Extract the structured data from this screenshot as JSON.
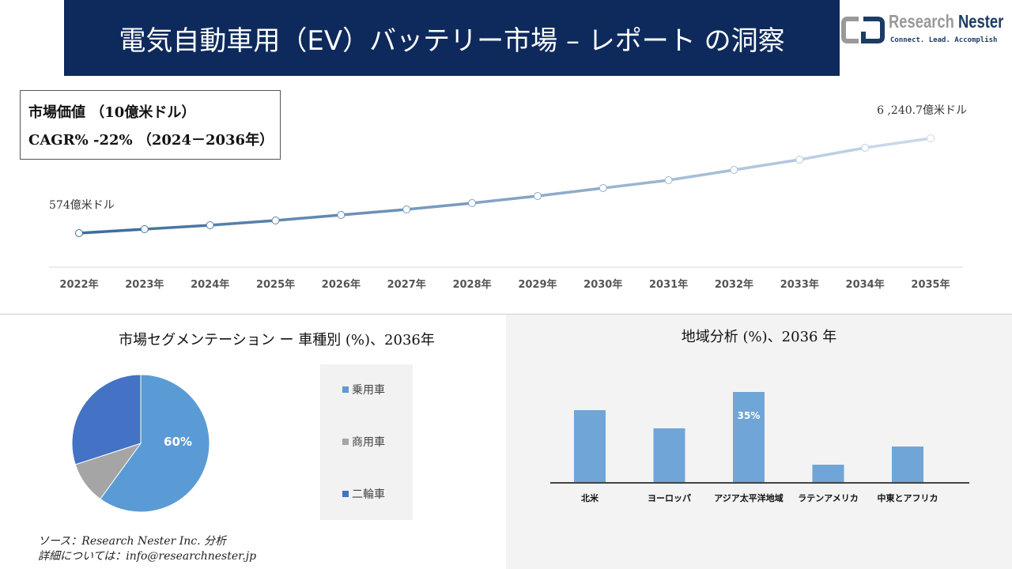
{
  "header": {
    "title": "電気自動車用（EV）バッテリー市場 – レポート の洞察",
    "logo_name_1": "Research",
    "logo_name_2": "Nester",
    "logo_tagline": "Connect. Lead. Accomplish"
  },
  "metric_box": {
    "line1": "市場価値 （10億米ドル）",
    "line2": "CAGR% -22% （2024－2036年）"
  },
  "chart_data": [
    {
      "type": "line",
      "categories": [
        "2022年",
        "2023年",
        "2024年",
        "2025年",
        "2026年",
        "2027年",
        "2028年",
        "2029年",
        "2030年",
        "2031年",
        "2032年",
        "2033年",
        "2034年",
        "2035年"
      ],
      "values": [
        574,
        810,
        1046,
        1329,
        1660,
        1990,
        2368,
        2793,
        3265,
        3737,
        4351,
        4965,
        5673,
        6240.7
      ],
      "data_labels": {
        "first": "574億米ドル",
        "last": "6 ,240.7億米ドル"
      },
      "grid": false,
      "color_start": "#3e6e9e",
      "color_end": "#c9d8ea"
    },
    {
      "type": "pie",
      "title": "市場セグメンテーション ー 車種別 (%)、2036年",
      "categories": [
        "乗用車",
        "商用車",
        "二輪車"
      ],
      "values": [
        60,
        10,
        30
      ],
      "colors": [
        "#5b9bd5",
        "#a5a5a5",
        "#4472c4"
      ],
      "data_label": "60%",
      "legend_placement": "right"
    },
    {
      "type": "bar",
      "title": "地域分析 (%)、2036 年",
      "categories": [
        "北米",
        "ヨーロッパ",
        "アジア太平洋地域",
        "ラテンアメリカ",
        "中東とアフリカ"
      ],
      "values": [
        28,
        21,
        35,
        7,
        14
      ],
      "data_label": "35%",
      "color": "#70a5d8"
    }
  ],
  "source": {
    "line1": "ソース：Research Nester Inc. 分析",
    "line2": "詳細については：info@researchnester.jp"
  }
}
